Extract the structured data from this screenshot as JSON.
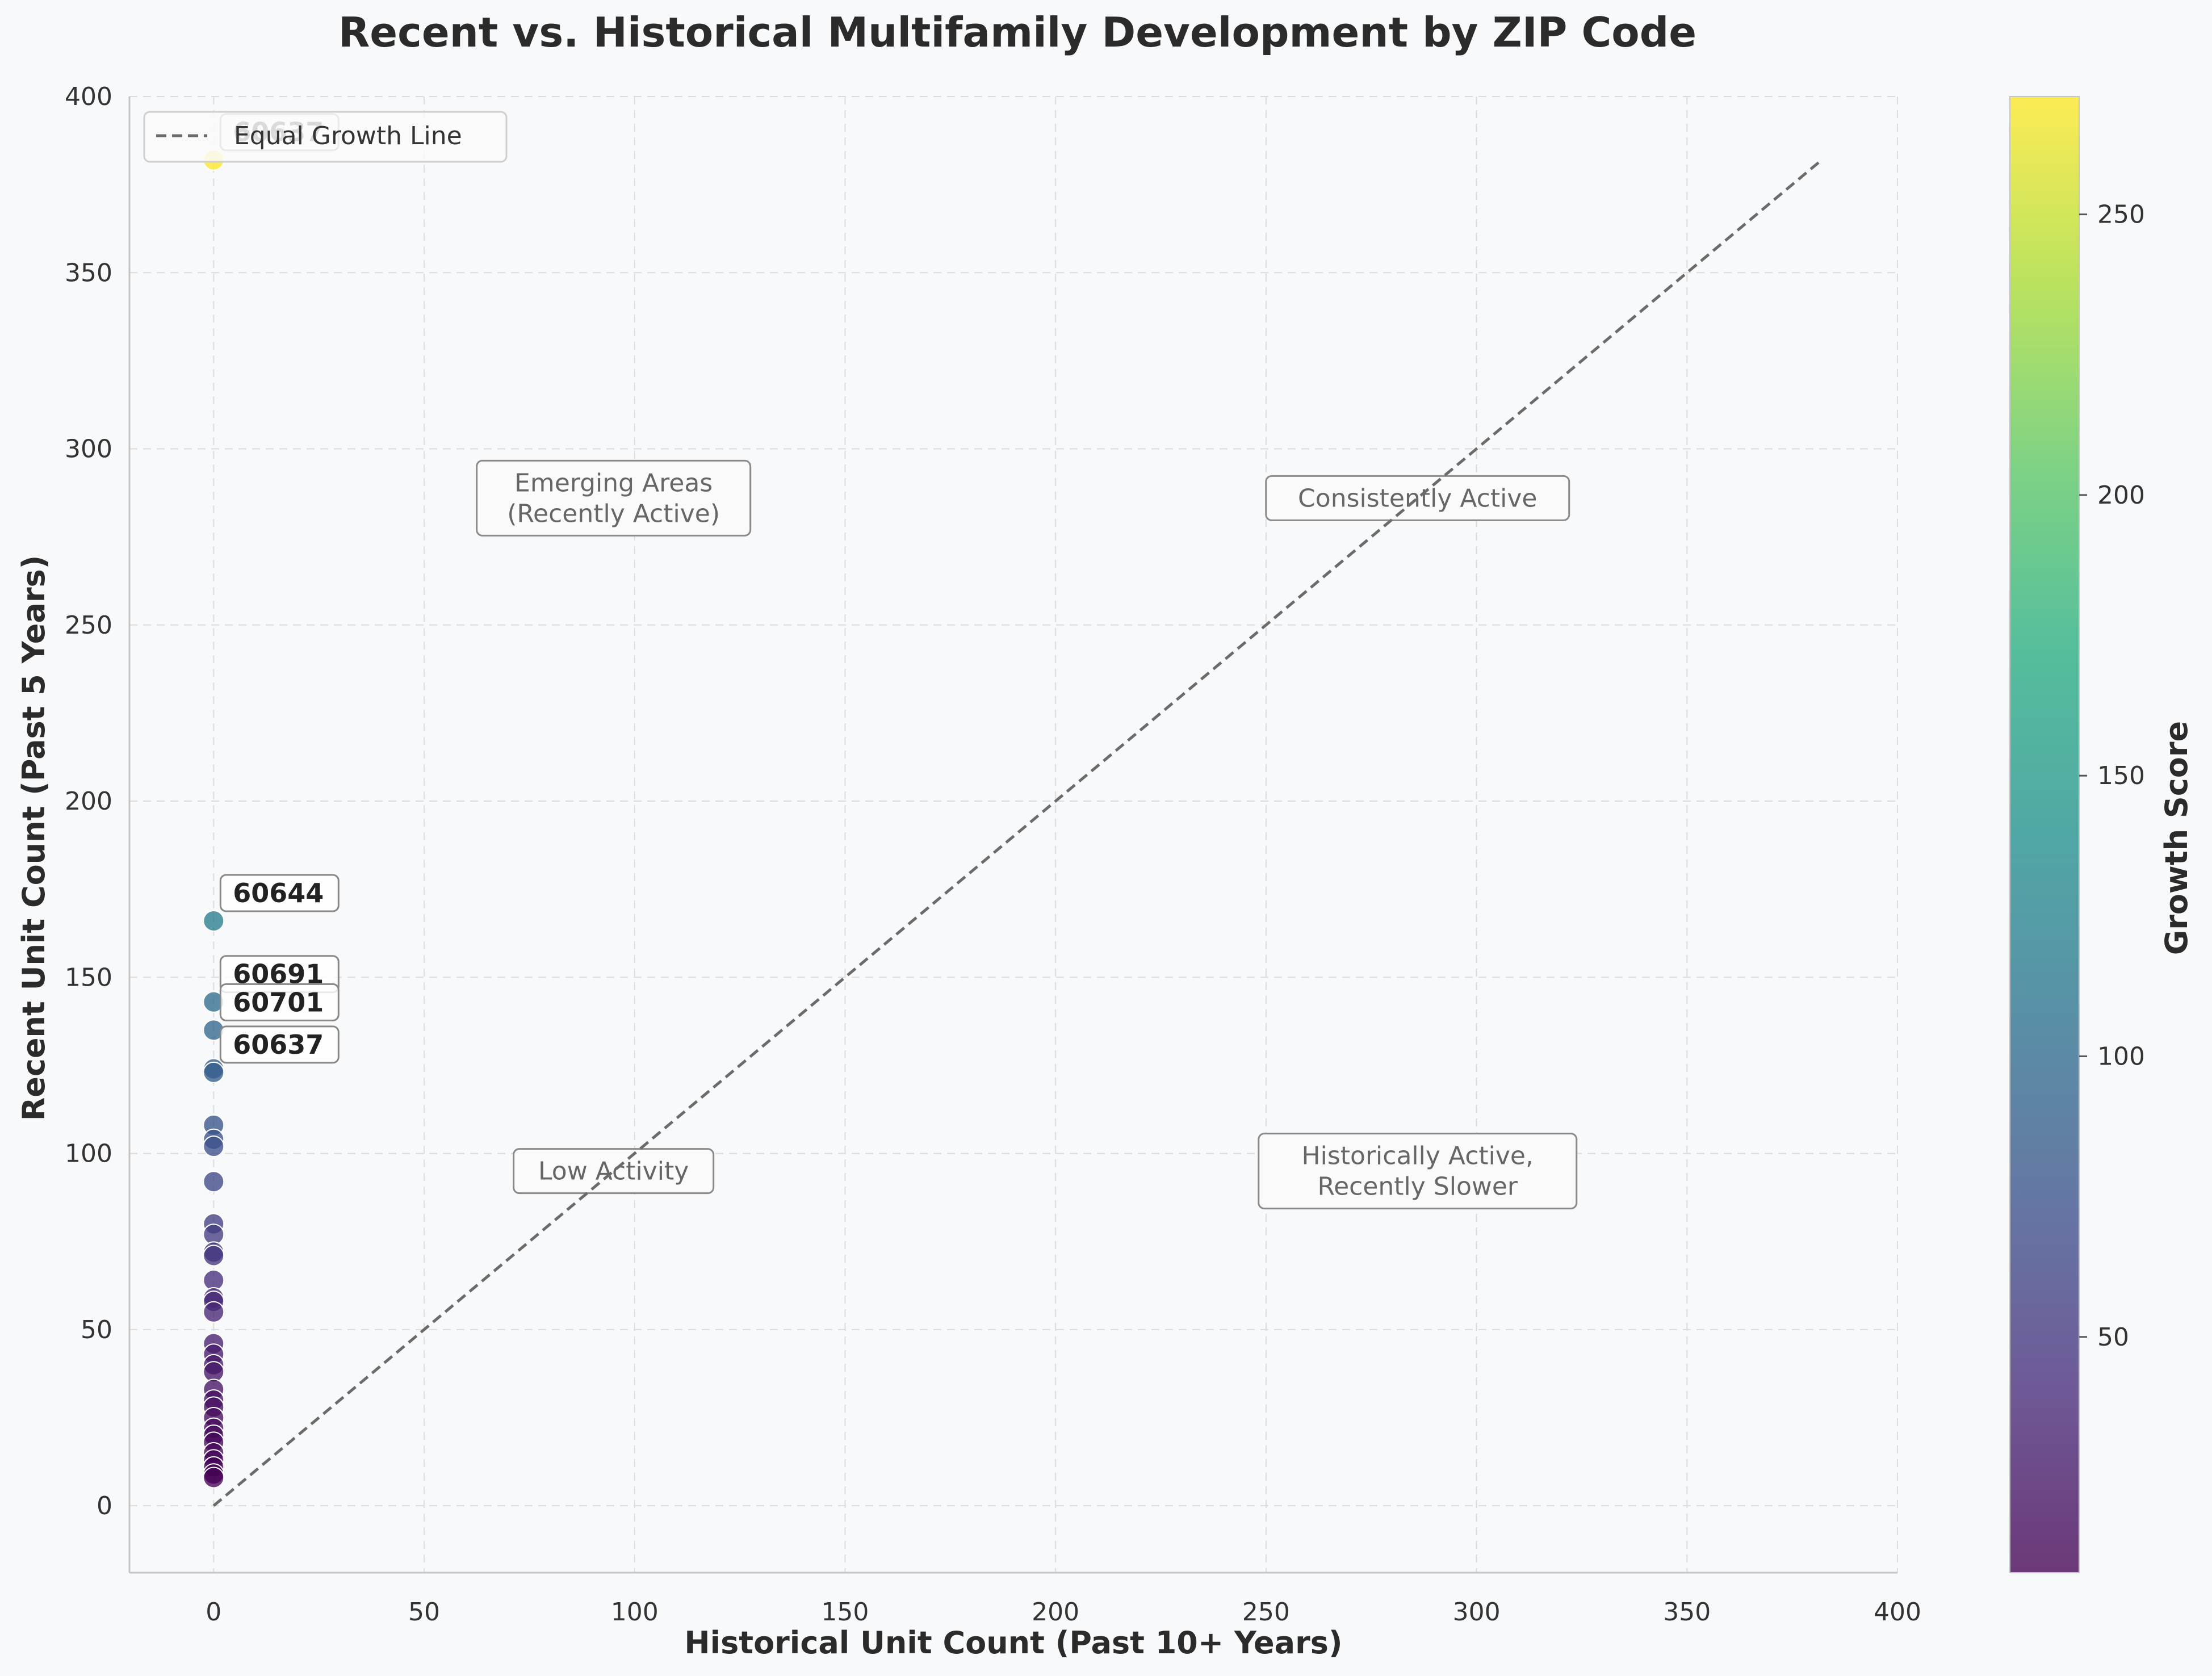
{
  "chart_data": {
    "type": "scatter",
    "title": "Recent vs. Historical Multifamily Development by ZIP Code",
    "xlabel": "Historical Unit Count (Past 10+ Years)",
    "ylabel": "Recent Unit Count (Past 5 Years)",
    "xlim": [
      -20,
      400
    ],
    "ylim": [
      -19,
      400
    ],
    "x_ticks": [
      0,
      50,
      100,
      150,
      200,
      250,
      300,
      350,
      400
    ],
    "y_ticks": [
      0,
      50,
      100,
      150,
      200,
      250,
      300,
      350,
      400
    ],
    "grid": true,
    "legend": {
      "placement": "upper left",
      "entries": [
        "Equal Growth Line"
      ]
    },
    "reference_line": {
      "name": "Equal Growth Line",
      "from": [
        0,
        0
      ],
      "to": [
        382,
        382
      ],
      "style": "dashed",
      "color": "#6b6b6b"
    },
    "colorbar": {
      "label": "Growth Score",
      "colormap": "viridis",
      "min": 8,
      "max": 271,
      "ticks": [
        50,
        100,
        150,
        200,
        250
      ]
    },
    "points": [
      {
        "x": 0,
        "y": 382,
        "score": 271
      },
      {
        "x": 0,
        "y": 166,
        "score": 118
      },
      {
        "x": 0,
        "y": 143,
        "score": 101
      },
      {
        "x": 0,
        "y": 135,
        "score": 95
      },
      {
        "x": 0,
        "y": 124,
        "score": 88
      },
      {
        "x": 0,
        "y": 123,
        "score": 86
      },
      {
        "x": 0,
        "y": 108,
        "score": 78
      },
      {
        "x": 0,
        "y": 104,
        "score": 75
      },
      {
        "x": 0,
        "y": 102,
        "score": 72
      },
      {
        "x": 0,
        "y": 92,
        "score": 65
      },
      {
        "x": 0,
        "y": 80,
        "score": 58
      },
      {
        "x": 0,
        "y": 77,
        "score": 55
      },
      {
        "x": 0,
        "y": 72,
        "score": 51
      },
      {
        "x": 0,
        "y": 71,
        "score": 49
      },
      {
        "x": 0,
        "y": 64,
        "score": 44
      },
      {
        "x": 0,
        "y": 59,
        "score": 40
      },
      {
        "x": 0,
        "y": 58,
        "score": 38
      },
      {
        "x": 0,
        "y": 55,
        "score": 36
      },
      {
        "x": 0,
        "y": 46,
        "score": 30
      },
      {
        "x": 0,
        "y": 43,
        "score": 28
      },
      {
        "x": 0,
        "y": 40,
        "score": 26
      },
      {
        "x": 0,
        "y": 38,
        "score": 24
      },
      {
        "x": 0,
        "y": 33,
        "score": 22
      },
      {
        "x": 0,
        "y": 30,
        "score": 20
      },
      {
        "x": 0,
        "y": 28,
        "score": 18
      },
      {
        "x": 0,
        "y": 25,
        "score": 17
      },
      {
        "x": 0,
        "y": 22,
        "score": 15
      },
      {
        "x": 0,
        "y": 20,
        "score": 14
      },
      {
        "x": 0,
        "y": 18,
        "score": 13
      },
      {
        "x": 0,
        "y": 15,
        "score": 12
      },
      {
        "x": 0,
        "y": 13,
        "score": 11
      },
      {
        "x": 0,
        "y": 11,
        "score": 10
      },
      {
        "x": 0,
        "y": 9,
        "score": 9
      },
      {
        "x": 0,
        "y": 8,
        "score": 8
      }
    ],
    "point_labels": [
      {
        "text": "60637",
        "x": 0,
        "y": 382
      },
      {
        "text": "60644",
        "x": 0,
        "y": 166
      },
      {
        "text": "60691",
        "x": 0,
        "y": 143
      },
      {
        "text": "60701",
        "x": 0,
        "y": 135
      },
      {
        "text": "60637",
        "x": 0,
        "y": 123
      }
    ],
    "region_annotations": [
      {
        "text": [
          "Emerging Areas",
          "(Recently Active)"
        ],
        "x": 95,
        "y": 286
      },
      {
        "text": [
          "Consistently Active"
        ],
        "x": 286,
        "y": 286
      },
      {
        "text": [
          "Low Activity"
        ],
        "x": 95,
        "y": 95
      },
      {
        "text": [
          "Historically Active,",
          "Recently Slower"
        ],
        "x": 286,
        "y": 95
      }
    ]
  }
}
